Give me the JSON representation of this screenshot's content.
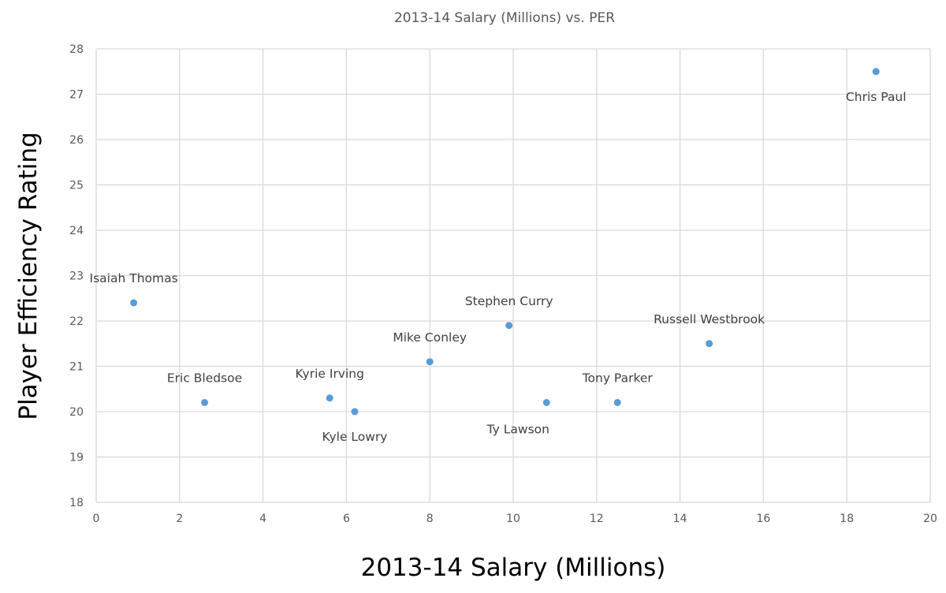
{
  "chart_data": {
    "type": "scatter",
    "title": "2013-14 Salary (Millions) vs. PER",
    "xlabel": "2013-14 Salary (Millions)",
    "ylabel": "Player Efficiency Rating",
    "xlim": [
      0,
      20
    ],
    "ylim": [
      18,
      28
    ],
    "xticks": [
      0,
      2,
      4,
      6,
      8,
      10,
      12,
      14,
      16,
      18,
      20
    ],
    "yticks": [
      18,
      19,
      20,
      21,
      22,
      23,
      24,
      25,
      26,
      27,
      28
    ],
    "grid": true,
    "marker_color": "#5b9bd5",
    "points": [
      {
        "label": "Chris Paul",
        "x": 18.7,
        "y": 27.5,
        "label_position": "below"
      },
      {
        "label": "Isaiah Thomas",
        "x": 0.9,
        "y": 22.4,
        "label_position": "above"
      },
      {
        "label": "Eric Bledsoe",
        "x": 2.6,
        "y": 20.2,
        "label_position": "above"
      },
      {
        "label": "Kyrie Irving",
        "x": 5.6,
        "y": 20.3,
        "label_position": "above"
      },
      {
        "label": "Kyle Lowry",
        "x": 6.2,
        "y": 20.0,
        "label_position": "below"
      },
      {
        "label": "Mike Conley",
        "x": 8.0,
        "y": 21.1,
        "label_position": "above"
      },
      {
        "label": "Stephen Curry",
        "x": 9.9,
        "y": 21.9,
        "label_position": "above"
      },
      {
        "label": "Ty Lawson",
        "x": 10.8,
        "y": 20.2,
        "label_position": "below-left"
      },
      {
        "label": "Tony Parker",
        "x": 12.5,
        "y": 20.2,
        "label_position": "above"
      },
      {
        "label": "Russell Westbrook",
        "x": 14.7,
        "y": 21.5,
        "label_position": "above"
      }
    ]
  }
}
